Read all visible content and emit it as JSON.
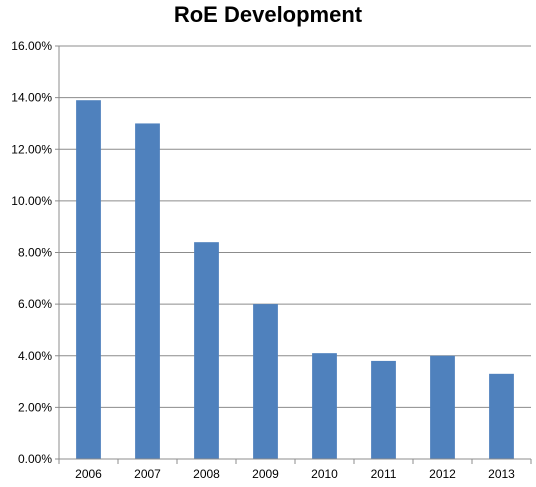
{
  "chart_data": {
    "type": "bar",
    "title": "RoE Development",
    "xlabel": "",
    "ylabel": "",
    "categories": [
      "2006",
      "2007",
      "2008",
      "2009",
      "2010",
      "2011",
      "2012",
      "2013"
    ],
    "values": [
      13.9,
      13.0,
      8.4,
      6.0,
      4.1,
      3.8,
      4.0,
      3.3
    ],
    "ylim": [
      0,
      16
    ],
    "yticks": [
      0,
      2,
      4,
      6,
      8,
      10,
      12,
      14,
      16
    ],
    "ytick_labels": [
      "0.00%",
      "2.00%",
      "4.00%",
      "6.00%",
      "8.00%",
      "10.00%",
      "12.00%",
      "14.00%",
      "16.00%"
    ],
    "grid": true,
    "legend": "none",
    "bar_color": "#4F81BD"
  }
}
